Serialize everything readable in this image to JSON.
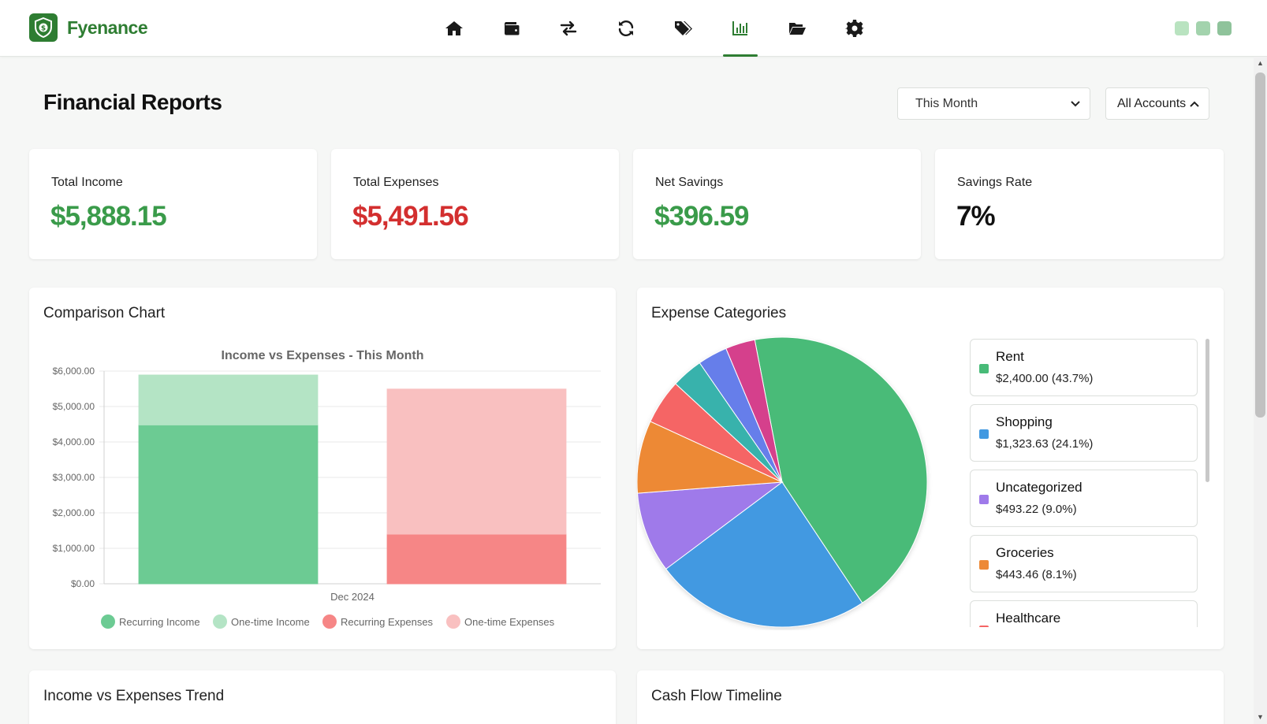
{
  "app": {
    "name": "Fyenance",
    "brand_color": "#2e7d32"
  },
  "nav": {
    "items": [
      {
        "icon": "home-icon",
        "active": false
      },
      {
        "icon": "wallet-icon",
        "active": false
      },
      {
        "icon": "transfer-icon",
        "active": false
      },
      {
        "icon": "recurring-icon",
        "active": false
      },
      {
        "icon": "tags-icon",
        "active": false
      },
      {
        "icon": "reports-icon",
        "active": true
      },
      {
        "icon": "folder-icon",
        "active": false
      },
      {
        "icon": "gear-icon",
        "active": false
      }
    ]
  },
  "header": {
    "title": "Financial Reports",
    "period_select": "This Month",
    "accounts_select": "All Accounts"
  },
  "stats": [
    {
      "label": "Total Income",
      "value": "$5,888.15",
      "color": "#3a9b4a"
    },
    {
      "label": "Total Expenses",
      "value": "$5,491.56",
      "color": "#d32f2f"
    },
    {
      "label": "Net Savings",
      "value": "$396.59",
      "color": "#3a9b4a"
    },
    {
      "label": "Savings Rate",
      "value": "7%",
      "color": "#111111"
    }
  ],
  "comparison": {
    "panel_title": "Comparison Chart"
  },
  "expenses_panel": {
    "panel_title": "Expense Categories"
  },
  "categories": [
    {
      "name": "Rent",
      "value": "$2,400.00 (43.7%)",
      "color": "#48bb78"
    },
    {
      "name": "Shopping",
      "value": "$1,323.63 (24.1%)",
      "color": "#4299e1"
    },
    {
      "name": "Uncategorized",
      "value": "$493.22 (9.0%)",
      "color": "#9f7aea"
    },
    {
      "name": "Groceries",
      "value": "$443.46 (8.1%)",
      "color": "#ed8936"
    },
    {
      "name": "Healthcare",
      "value": "",
      "color": "#f56565"
    }
  ],
  "bottom_panels": {
    "trend_title": "Income vs Expenses Trend",
    "cashflow_title": "Cash Flow Timeline"
  },
  "chart_data": [
    {
      "type": "bar",
      "title": "Income vs Expenses - This Month",
      "categories": [
        "Dec 2024"
      ],
      "ylim": [
        0,
        6000
      ],
      "yticks": [
        "$0.00",
        "$1,000.00",
        "$2,000.00",
        "$3,000.00",
        "$4,000.00",
        "$5,000.00",
        "$6,000.00"
      ],
      "stacked": true,
      "series": [
        {
          "name": "Recurring Income",
          "stack": "income",
          "values": [
            4480
          ],
          "color": "#6ccb93"
        },
        {
          "name": "One-time Income",
          "stack": "income",
          "values": [
            1408.15
          ],
          "color": "#b4e4c5"
        },
        {
          "name": "Recurring Expenses",
          "stack": "expenses",
          "values": [
            1400
          ],
          "color": "#f68686"
        },
        {
          "name": "One-time Expenses",
          "stack": "expenses",
          "values": [
            4091.56
          ],
          "color": "#f9c0c0"
        }
      ],
      "legend": "bottom",
      "grid": true
    },
    {
      "type": "pie",
      "title": "",
      "slices": [
        {
          "label": "Rent",
          "value": 43.7,
          "color": "#48bb78"
        },
        {
          "label": "Shopping",
          "value": 24.1,
          "color": "#4299e1"
        },
        {
          "label": "Uncategorized",
          "value": 9.0,
          "color": "#9f7aea"
        },
        {
          "label": "Groceries",
          "value": 8.1,
          "color": "#ed8936"
        },
        {
          "label": "Healthcare",
          "value": 5.0,
          "color": "#f56565"
        },
        {
          "label": "",
          "value": 3.5,
          "color": "#38b2ac"
        },
        {
          "label": "",
          "value": 3.3,
          "color": "#667eea"
        },
        {
          "label": "",
          "value": 3.3,
          "color": "#d53f8c"
        }
      ]
    }
  ]
}
